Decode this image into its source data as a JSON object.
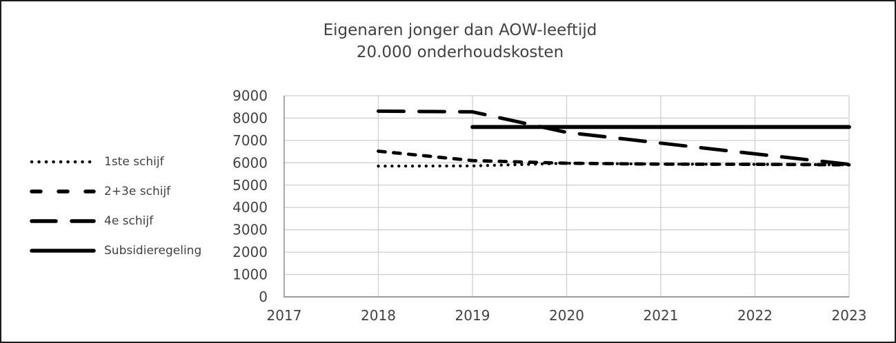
{
  "chart_data": {
    "type": "line",
    "title_line1": "Eigenaren jonger dan AOW-leeftijd",
    "title_line2": "20.000 onderhoudskosten",
    "x": [
      2018,
      2019,
      2020,
      2021,
      2022,
      2023
    ],
    "xticks": [
      "2017",
      "2018",
      "2019",
      "2020",
      "2021",
      "2022",
      "2023"
    ],
    "yticks": [
      "0",
      "1000",
      "2000",
      "3000",
      "4000",
      "5000",
      "6000",
      "7000",
      "8000",
      "9000"
    ],
    "xlim": [
      2017,
      2023
    ],
    "ylim": [
      0,
      9000
    ],
    "grid": true,
    "legend_position": "left",
    "series": [
      {
        "name": "1ste schijf",
        "dash": "dotted",
        "values": [
          5850,
          5860,
          5980,
          5940,
          5930,
          5910
        ]
      },
      {
        "name": "2+3e schijf",
        "dash": "short-dash",
        "values": [
          6520,
          6100,
          5980,
          5940,
          5930,
          5910
        ]
      },
      {
        "name": "4e schijf",
        "dash": "long-dash",
        "values": [
          8310,
          8280,
          7360,
          6880,
          6400,
          5930
        ]
      },
      {
        "name": "Subsidieregeling",
        "dash": "solid",
        "values": [
          null,
          7600,
          7600,
          7600,
          7600,
          7600
        ]
      }
    ],
    "colors": {
      "line": "#000000",
      "grid": "#cfcfcf",
      "axis": "#9c9c9c",
      "text": "#414141"
    }
  }
}
